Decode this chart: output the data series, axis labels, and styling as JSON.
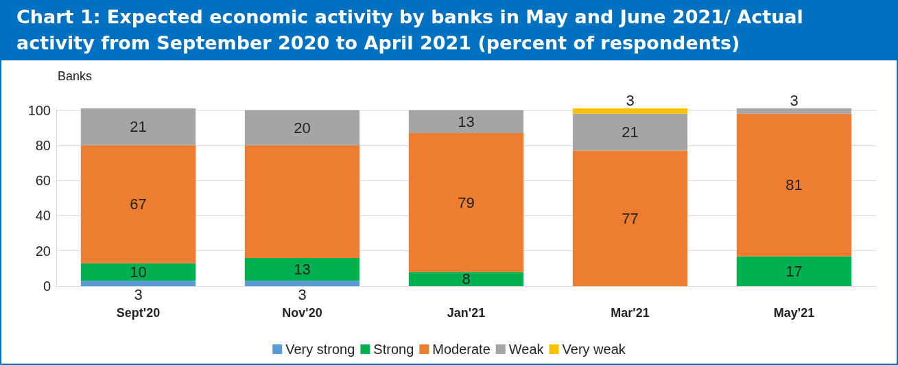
{
  "chart_data": {
    "type": "bar",
    "stacked": true,
    "title": "Chart 1: Expected economic activity by banks in May and June 2021/ Actual activity from September 2020 to April 2021 (percent of respondents)",
    "ylabel": "Banks",
    "categories": [
      "Sept'20",
      "Nov'20",
      "Jan'21",
      "Mar'21",
      "May'21"
    ],
    "ylim": [
      0,
      101
    ],
    "yticks": [
      0,
      20,
      40,
      60,
      80,
      100
    ],
    "grid": "y",
    "legend": "bottom",
    "series": [
      {
        "name": "Very strong",
        "color": "#5b9bd5",
        "values": [
          3,
          3,
          null,
          null,
          null
        ],
        "value_labels": [
          "3",
          "3",
          null,
          null,
          null
        ]
      },
      {
        "name": "Strong",
        "color": "#00b050",
        "values": [
          10,
          13,
          8,
          null,
          17
        ],
        "value_labels": [
          "10",
          "13",
          "8",
          null,
          "17"
        ]
      },
      {
        "name": "Moderate",
        "color": "#ed7d31",
        "values": [
          67,
          64,
          79,
          77,
          81
        ],
        "value_labels": [
          "67",
          null,
          "79",
          "77",
          "81"
        ]
      },
      {
        "name": "Weak",
        "color": "#a5a5a5",
        "values": [
          21,
          20,
          13,
          21,
          3
        ],
        "value_labels": [
          "21",
          "20",
          "13",
          "21",
          "3"
        ]
      },
      {
        "name": "Very weak",
        "color": "#ffc000",
        "values": [
          null,
          null,
          null,
          3,
          null
        ],
        "value_labels": [
          null,
          null,
          null,
          "3",
          null
        ]
      }
    ]
  }
}
